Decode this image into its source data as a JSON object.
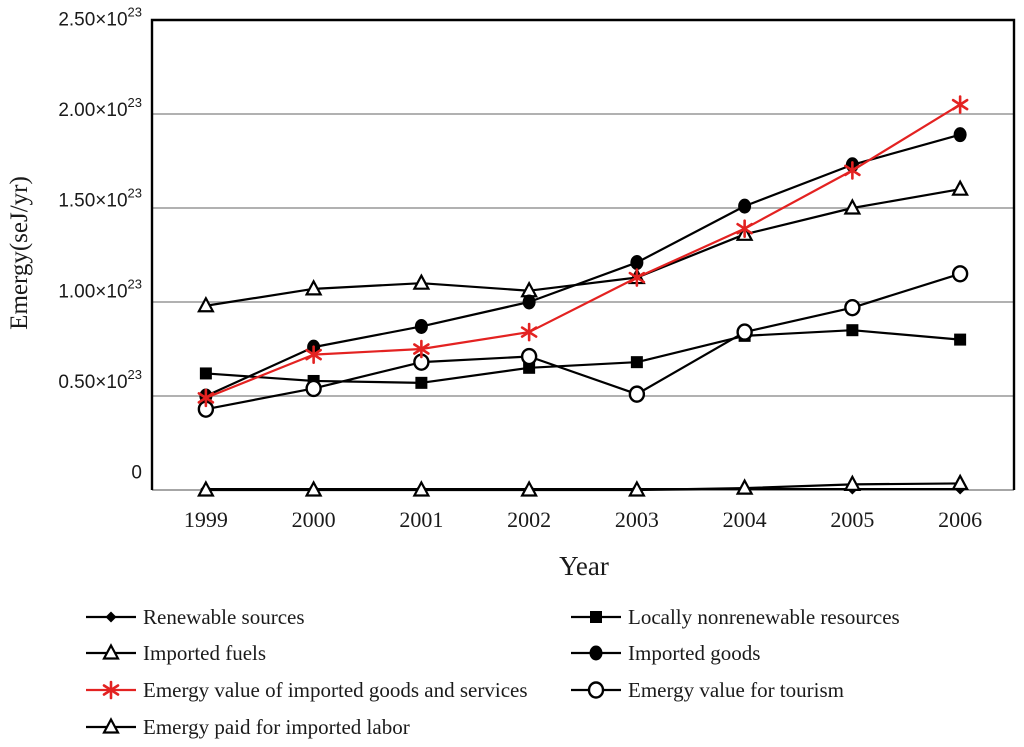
{
  "figure": {
    "background": "#ffffff",
    "frame_color": "#000000",
    "grid_color": "#a6a6a6",
    "accent_red": "#e32221",
    "series_black": "#000000"
  },
  "chart_data": {
    "type": "line",
    "title": "",
    "xlabel": "Year",
    "ylabel": "Emergy(seJ/yr)",
    "grid": "horizontal",
    "legend_position": "bottom, two columns",
    "categories": [
      "1999",
      "2000",
      "2001",
      "2002",
      "2003",
      "2004",
      "2005",
      "2006"
    ],
    "y_axis": {
      "unit": "seJ/yr",
      "scale_note": "values in units of 1e23 seJ/yr",
      "min": 0,
      "max": 2.5,
      "tick_step": 0.5,
      "ticks": [
        {
          "value": 2.5,
          "label": "2.50×10",
          "sup": "23"
        },
        {
          "value": 2.0,
          "label": "2.00×10",
          "sup": "23"
        },
        {
          "value": 1.5,
          "label": "1.50×10",
          "sup": "23"
        },
        {
          "value": 1.0,
          "label": "1.00×10",
          "sup": "23"
        },
        {
          "value": 0.5,
          "label": "0.50×10",
          "sup": "23"
        },
        {
          "value": 0.0,
          "label": "0",
          "sup": ""
        }
      ]
    },
    "series": [
      {
        "name": "Renewable sources",
        "marker": "diamond-filled",
        "color": "#000000",
        "legend": {
          "col": 0,
          "row": 0
        },
        "values_1e23": [
          0.005,
          0.005,
          0.005,
          0.005,
          0.005,
          0.005,
          0.005,
          0.005
        ]
      },
      {
        "name": "Locally nonrenewable resources",
        "marker": "square-filled",
        "color": "#000000",
        "legend": {
          "col": 1,
          "row": 0
        },
        "values_1e23": [
          0.62,
          0.58,
          0.57,
          0.65,
          0.68,
          0.82,
          0.85,
          0.8
        ]
      },
      {
        "name": "Imported fuels",
        "marker": "triangle-open",
        "color": "#000000",
        "legend": {
          "col": 0,
          "row": 1
        },
        "values_1e23": [
          0.98,
          1.07,
          1.1,
          1.06,
          1.13,
          1.36,
          1.5,
          1.6
        ]
      },
      {
        "name": "Imported goods",
        "marker": "circle-filled",
        "color": "#000000",
        "legend": {
          "col": 1,
          "row": 1
        },
        "values_1e23": [
          0.5,
          0.76,
          0.87,
          1.0,
          1.21,
          1.51,
          1.73,
          1.89
        ]
      },
      {
        "name": "Emergy value for tourism",
        "marker": "circle-open",
        "color": "#000000",
        "legend": {
          "col": 1,
          "row": 2
        },
        "values_1e23": [
          0.43,
          0.54,
          0.68,
          0.71,
          0.51,
          0.84,
          0.97,
          1.15
        ]
      },
      {
        "name": "Emergy paid for imported labor",
        "marker": "triangle-open",
        "color": "#000000",
        "legend": {
          "col": 0,
          "row": 3
        },
        "values_1e23": [
          0.0,
          0.0,
          0.0,
          0.0,
          0.0,
          0.01,
          0.03,
          0.035
        ]
      },
      {
        "name": "Emergy value of imported goods and services",
        "marker": "asterisk",
        "color": "#e32221",
        "legend": {
          "col": 0,
          "row": 2
        },
        "values_1e23": [
          0.49,
          0.72,
          0.75,
          0.84,
          1.13,
          1.39,
          1.7,
          2.05
        ]
      }
    ]
  }
}
